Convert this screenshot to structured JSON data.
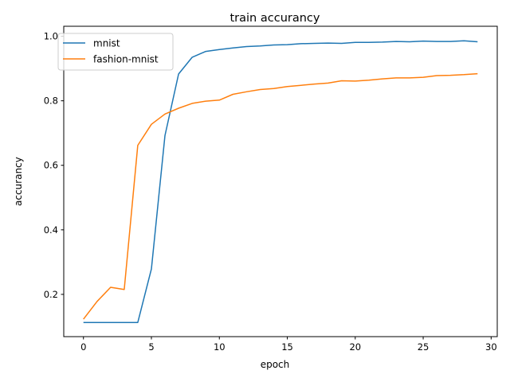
{
  "chart_data": {
    "type": "line",
    "title": "train accurancy",
    "xlabel": "epoch",
    "ylabel": "accurancy",
    "xlim": [
      -1.45,
      30.45
    ],
    "ylim": [
      0.069,
      1.031
    ],
    "xticks": [
      0,
      5,
      10,
      15,
      20,
      25,
      30
    ],
    "yticks": [
      0.2,
      0.4,
      0.6,
      0.8,
      1.0
    ],
    "ytick_labels": [
      "0.2",
      "0.4",
      "0.6",
      "0.8",
      "1.0"
    ],
    "grid": false,
    "legend_position": "upper-left",
    "x": [
      0,
      1,
      2,
      3,
      4,
      5,
      6,
      7,
      8,
      9,
      10,
      11,
      12,
      13,
      14,
      15,
      16,
      17,
      18,
      19,
      20,
      21,
      22,
      23,
      24,
      25,
      26,
      27,
      28,
      29
    ],
    "series": [
      {
        "name": "mnist",
        "color": "#1f77b4",
        "values": [
          0.113,
          0.113,
          0.113,
          0.113,
          0.113,
          0.279,
          0.692,
          0.883,
          0.935,
          0.953,
          0.959,
          0.964,
          0.968,
          0.97,
          0.973,
          0.974,
          0.977,
          0.978,
          0.979,
          0.978,
          0.981,
          0.981,
          0.982,
          0.984,
          0.983,
          0.985,
          0.984,
          0.984,
          0.986,
          0.983
        ]
      },
      {
        "name": "fashion-mnist",
        "color": "#ff7f0e",
        "values": [
          0.123,
          0.178,
          0.222,
          0.215,
          0.662,
          0.727,
          0.759,
          0.777,
          0.792,
          0.799,
          0.802,
          0.82,
          0.828,
          0.835,
          0.838,
          0.844,
          0.848,
          0.852,
          0.855,
          0.862,
          0.861,
          0.864,
          0.868,
          0.871,
          0.871,
          0.873,
          0.878,
          0.879,
          0.881,
          0.884
        ]
      }
    ]
  }
}
